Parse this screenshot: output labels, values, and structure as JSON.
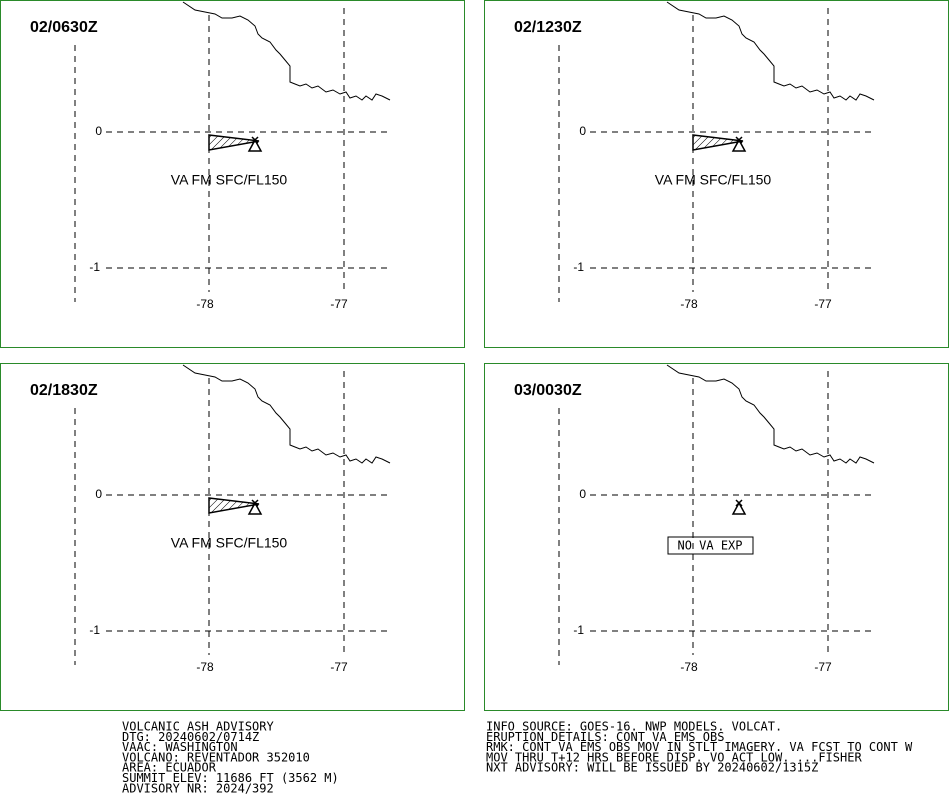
{
  "panels": [
    {
      "time": "02/0630Z",
      "lat_labels": [
        "0",
        "-1"
      ],
      "lon_labels": [
        "-78",
        "-77"
      ],
      "annotation": "VA FM SFC/FL150",
      "ash_polygon": true
    },
    {
      "time": "02/1230Z",
      "lat_labels": [
        "0",
        "-1"
      ],
      "lon_labels": [
        "-78",
        "-77"
      ],
      "annotation": "VA FM SFC/FL150",
      "ash_polygon": true
    },
    {
      "time": "02/1830Z",
      "lat_labels": [
        "0",
        "-1"
      ],
      "lon_labels": [
        "-78",
        "-77"
      ],
      "annotation": "VA FM SFC/FL150",
      "ash_polygon": true
    },
    {
      "time": "03/0030Z",
      "lat_labels": [
        "0",
        "-1"
      ],
      "lon_labels": [
        "-78",
        "-77"
      ],
      "annotation": "NO VA EXP",
      "ash_polygon": false
    }
  ],
  "advisory_left": [
    "VOLCANIC ASH ADVISORY",
    "DTG: 20240602/0714Z",
    "VAAC: WASHINGTON",
    "VOLCANO: REVENTADOR 352010",
    "AREA: ECUADOR",
    "SUMMIT ELEV: 11686 FT (3562 M)",
    "ADVISORY NR: 2024/392"
  ],
  "advisory_right": [
    "INFO SOURCE: GOES-16. NWP MODELS. VOLCAT.",
    "ERUPTION DETAILS: CONT VA EMS OBS",
    "RMK: CONT VA EMS OBS MOV IN STLT IMAGERY. VA FCST TO CONT W",
    "MOV THRU T+12 HRS BEFORE DISP. VO ACT LOW. ...FISHER",
    "NXT ADVISORY: WILL BE ISSUED BY 20240602/1315Z"
  ]
}
